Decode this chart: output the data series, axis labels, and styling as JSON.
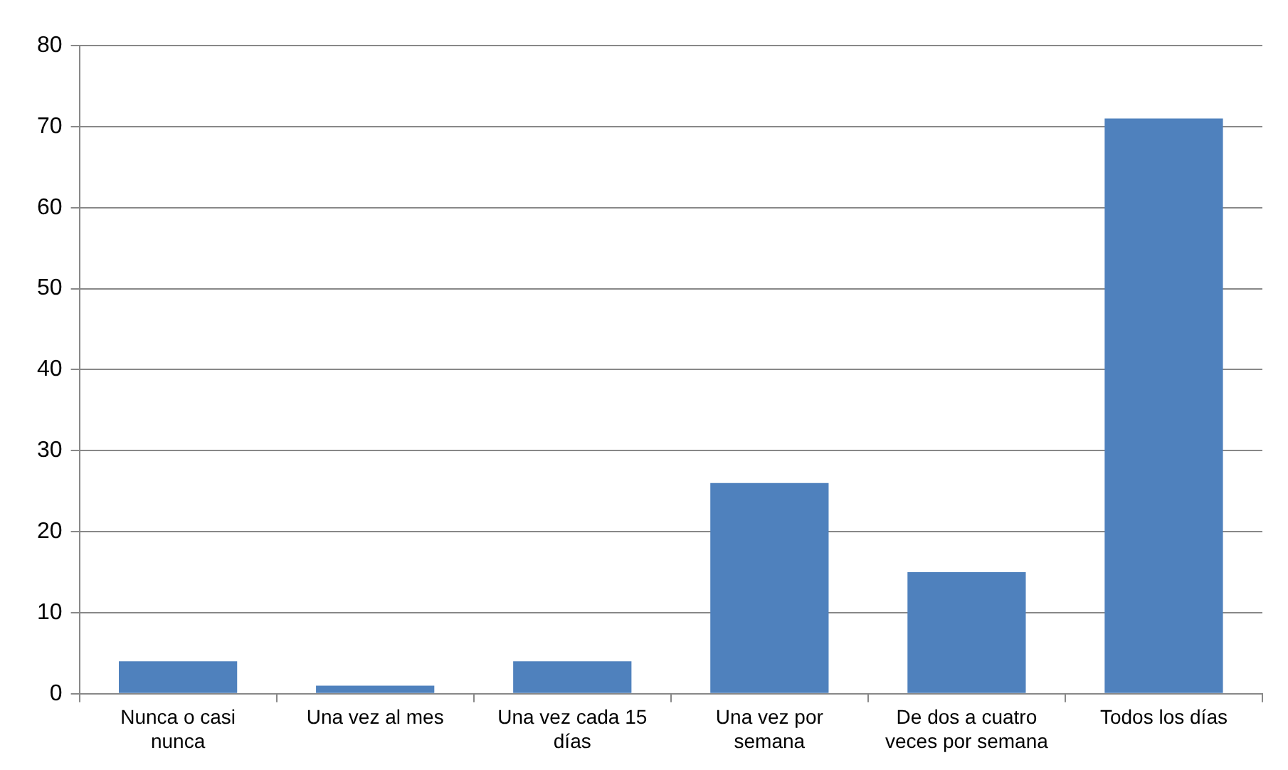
{
  "chart_data": {
    "type": "bar",
    "categories": [
      "Nunca o casi nunca",
      "Una vez al mes",
      "Una vez cada 15 días",
      "Una vez por semana",
      "De dos a cuatro veces por semana",
      "Todos los días"
    ],
    "values": [
      4,
      1,
      4,
      26,
      15,
      71
    ],
    "color": "#4f81bd",
    "ylim": [
      0,
      80
    ],
    "yticks": [
      0,
      10,
      20,
      30,
      40,
      50,
      60,
      70,
      80
    ],
    "grid": "y",
    "legend": false
  }
}
